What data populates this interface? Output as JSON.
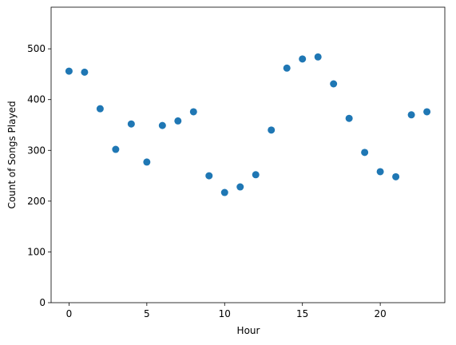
{
  "chart_data": {
    "type": "scatter",
    "x_label": "Hour",
    "y_label": "Count of Songs Played",
    "x": [
      0,
      1,
      2,
      3,
      4,
      5,
      6,
      7,
      8,
      9,
      10,
      11,
      12,
      13,
      14,
      15,
      16,
      17,
      18,
      19,
      20,
      21,
      22,
      23
    ],
    "values": [
      456,
      454,
      382,
      302,
      352,
      277,
      349,
      358,
      376,
      250,
      217,
      228,
      252,
      340,
      462,
      480,
      484,
      431,
      363,
      296,
      258,
      248,
      370,
      376
    ],
    "color": "#1f77b4",
    "xlim": [
      -1.15,
      24.15
    ],
    "xticks": [
      0,
      5,
      10,
      15,
      20
    ],
    "ylim": [
      0,
      582
    ],
    "yticks": [
      0,
      100,
      200,
      300,
      400,
      500
    ],
    "grid": false
  }
}
